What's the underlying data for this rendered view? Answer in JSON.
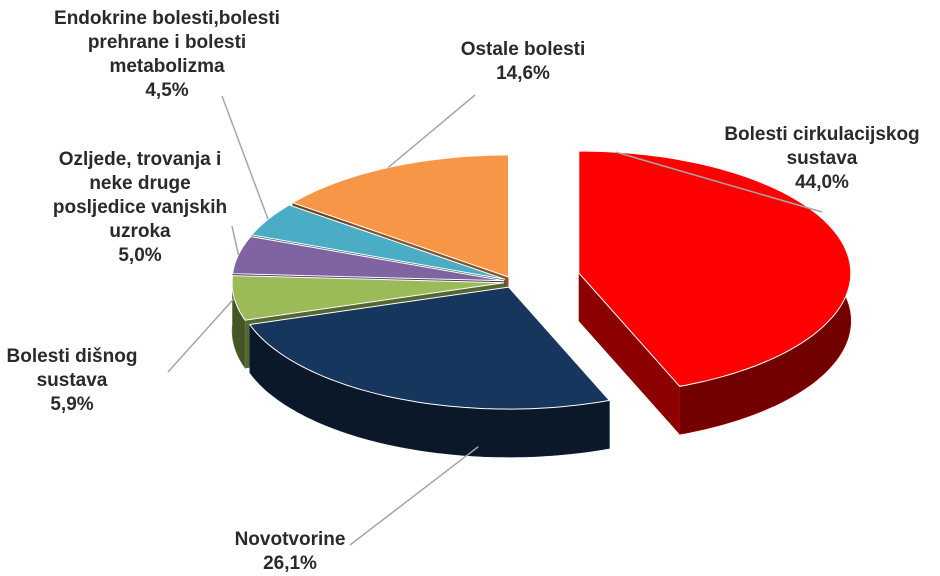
{
  "chart_data": {
    "type": "pie3d",
    "categories": [
      "Bolesti cirkulacijskog\nsustava",
      "Novotvorine",
      "Bolesti dišnog\nsustava",
      "Ozljede, trovanja i\nneke druge\nposljedice vanjskih\nuzroka",
      "Endokrine bolesti,bolesti\nprehrane i bolesti\nmetabolizma",
      "Ostale bolesti"
    ],
    "values": [
      44.0,
      26.1,
      5.9,
      5.0,
      4.5,
      14.6
    ],
    "value_labels": [
      "44,0%",
      "26,1%",
      "5,9%",
      "5,0%",
      "4,5%",
      "14,6%"
    ],
    "colors": [
      "#ff0000",
      "#17365d",
      "#9bbb59",
      "#8064a2",
      "#4bacc6",
      "#f79646"
    ]
  }
}
